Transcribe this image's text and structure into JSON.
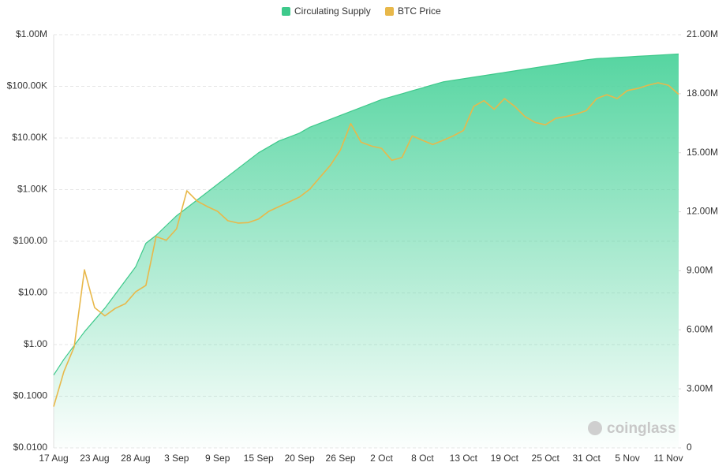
{
  "chart_data": {
    "type": "line",
    "watermark": "coinglass",
    "categories": [
      "17 Aug",
      null,
      null,
      null,
      "23 Aug",
      null,
      null,
      null,
      "28 Aug",
      null,
      null,
      null,
      "3 Sep",
      null,
      null,
      null,
      "9 Sep",
      null,
      null,
      null,
      "15 Sep",
      null,
      null,
      null,
      "20 Sep",
      null,
      null,
      null,
      "26 Sep",
      null,
      null,
      null,
      "2 Oct",
      null,
      null,
      null,
      "8 Oct",
      null,
      null,
      null,
      "13 Oct",
      null,
      null,
      null,
      "19 Oct",
      null,
      null,
      null,
      "25 Oct",
      null,
      null,
      null,
      "31 Oct",
      null,
      null,
      null,
      "5 Nov",
      null,
      null,
      null,
      "11 Nov",
      null
    ],
    "yscale": "log",
    "ylim": [
      0.01,
      1000000
    ],
    "yticks": [
      {
        "value": 0.01,
        "label": "$0.0100"
      },
      {
        "value": 0.1,
        "label": "$0.1000"
      },
      {
        "value": 1,
        "label": "$1.00"
      },
      {
        "value": 10,
        "label": "$10.00"
      },
      {
        "value": 100,
        "label": "$100.00"
      },
      {
        "value": 1000,
        "label": "$1.00K"
      },
      {
        "value": 10000,
        "label": "$10.00K"
      },
      {
        "value": 100000,
        "label": "$100.00K"
      },
      {
        "value": 1000000,
        "label": "$1.00M"
      }
    ],
    "y2lim": [
      0,
      21000000
    ],
    "y2ticks": [
      0,
      {
        "value": 3000000,
        "label": "3.00M"
      },
      {
        "value": 6000000,
        "label": "6.00M"
      },
      {
        "value": 9000000,
        "label": "9.00M"
      },
      {
        "value": 12000000,
        "label": "12.00M"
      },
      {
        "value": 15000000,
        "label": "15.00M"
      },
      {
        "value": 18000000,
        "label": "18.00M"
      },
      {
        "value": 21000000,
        "label": "21.00M"
      }
    ],
    "grid": true,
    "legend": "top",
    "series": [
      {
        "name": "Circulating Supply",
        "color": "#3ec98b",
        "axis": "y2",
        "values": [
          3700000,
          4500000,
          5200000,
          5900000,
          6500000,
          7100000,
          7800000,
          8500000,
          9200000,
          10400000,
          10800000,
          11300000,
          11800000,
          12200000,
          12600000,
          13000000,
          13400000,
          13800000,
          14200000,
          14600000,
          15000000,
          15300000,
          15600000,
          15800000,
          16000000,
          16300000,
          16500000,
          16700000,
          16900000,
          17100000,
          17300000,
          17500000,
          17700000,
          17850000,
          18000000,
          18150000,
          18300000,
          18450000,
          18600000,
          18680000,
          18760000,
          18840000,
          18920000,
          19000000,
          19080000,
          19160000,
          19240000,
          19320000,
          19400000,
          19480000,
          19560000,
          19640000,
          19720000,
          19780000,
          19810000,
          19840000,
          19870000,
          19900000,
          19930000,
          19960000,
          19990000,
          20020000
        ]
      },
      {
        "name": "BTC Price",
        "color": "#e8b84a",
        "values": [
          0.063,
          0.3,
          0.9,
          28,
          5.2,
          3.6,
          5,
          6.2,
          10.5,
          14,
          123,
          105,
          175,
          950,
          600,
          470,
          380,
          250,
          225,
          230,
          270,
          380,
          470,
          580,
          720,
          1020,
          1740,
          2950,
          5900,
          19000,
          8300,
          7000,
          6300,
          3700,
          4200,
          11000,
          9000,
          7500,
          9000,
          11000,
          14000,
          41000,
          53000,
          36000,
          58000,
          41000,
          26000,
          20000,
          18000,
          24000,
          26000,
          29000,
          34000,
          58000,
          69000,
          58000,
          83000,
          91000,
          105000,
          117000,
          105000,
          70000
        ]
      }
    ]
  }
}
